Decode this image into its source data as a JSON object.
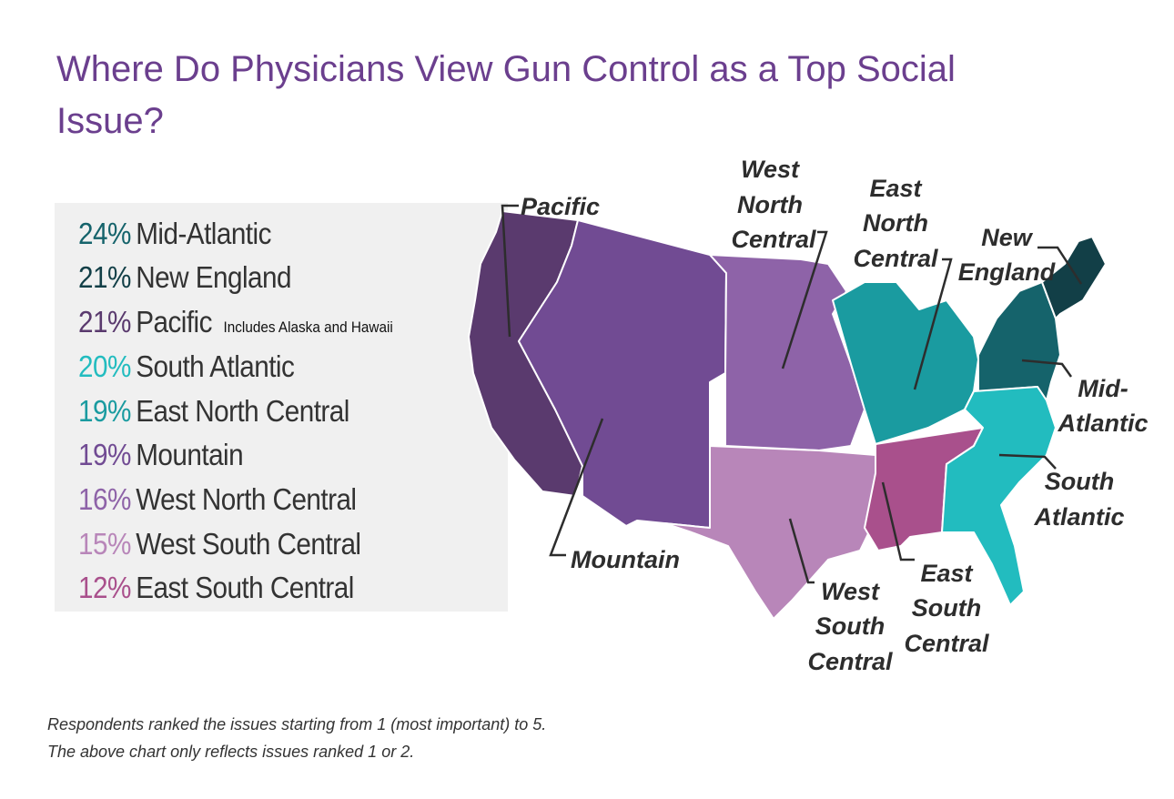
{
  "title": "Where Do Physicians View Gun Control as a Top Social Issue?",
  "legend": [
    {
      "pct": "24%",
      "region": "Mid-Atlantic",
      "color": "#15636b"
    },
    {
      "pct": "21%",
      "region": "New England",
      "color": "#123f47"
    },
    {
      "pct": "21%",
      "region": "Pacific",
      "note": "Includes Alaska and Hawaii",
      "color": "#5a3a6e"
    },
    {
      "pct": "20%",
      "region": "South Atlantic",
      "color": "#22bcbf"
    },
    {
      "pct": "19%",
      "region": "East North Central",
      "color": "#1a9ba0"
    },
    {
      "pct": "19%",
      "region": "Mountain",
      "color": "#714b93"
    },
    {
      "pct": "16%",
      "region": "West North Central",
      "color": "#8e63a8"
    },
    {
      "pct": "15%",
      "region": "West South Central",
      "color": "#b886b9"
    },
    {
      "pct": "12%",
      "region": "East South Central",
      "color": "#a9508c"
    }
  ],
  "map_labels": {
    "pacific": [
      "Pacific"
    ],
    "mountain": [
      "Mountain"
    ],
    "wnc": [
      "West",
      "North",
      "Central"
    ],
    "enc": [
      "East",
      "North",
      "Central"
    ],
    "ne": [
      "New",
      "England"
    ],
    "ma": [
      "Mid-",
      "Atlantic"
    ],
    "sa": [
      "South",
      "Atlantic"
    ],
    "esc": [
      "East",
      "South",
      "Central"
    ],
    "wsc": [
      "West",
      "South",
      "Central"
    ]
  },
  "footnote": [
    "Respondents ranked the issues starting from 1 (most important) to 5.",
    "The above chart only reflects issues ranked 1 or 2."
  ]
}
